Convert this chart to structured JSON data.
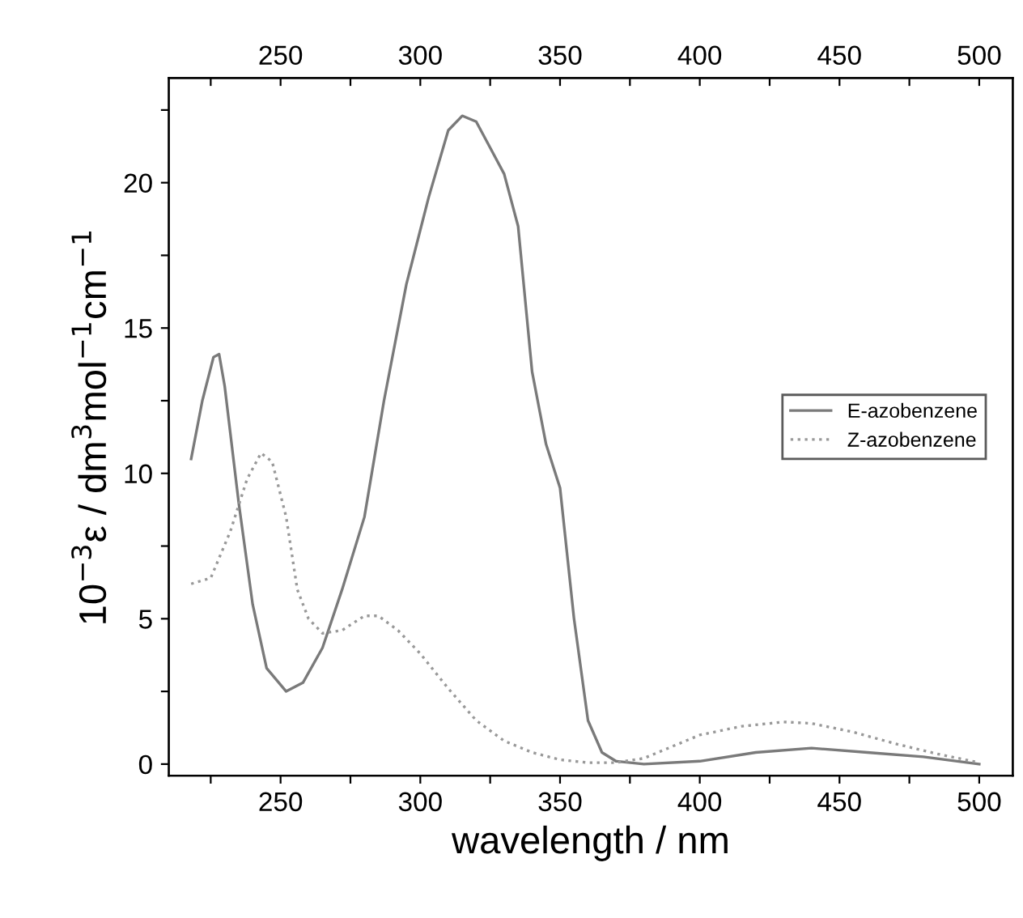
{
  "chart_data": {
    "type": "line",
    "xlabel": "wavelength / nm",
    "ylabel": "10$^{−3}$ε / dm$^{3}$mol$^{−1}$cm$^{−1}$",
    "xlim": [
      210,
      512
    ],
    "xticks": [
      {
        "value": 225,
        "label": null
      },
      250,
      {
        "value": 275,
        "label": null
      },
      300,
      {
        "value": 325,
        "label": null
      },
      350,
      {
        "value": 375,
        "label": null
      },
      400,
      {
        "value": 425,
        "label": null
      },
      450,
      {
        "value": 475,
        "label": null
      },
      500
    ],
    "x2lim": [
      210,
      512
    ],
    "x2ticks": [
      {
        "value": 225,
        "label": null
      },
      250,
      {
        "value": 275,
        "label": null
      },
      300,
      {
        "value": 325,
        "label": null
      },
      350,
      {
        "value": 375,
        "label": null
      },
      400,
      {
        "value": 425,
        "label": null
      },
      450,
      {
        "value": 475,
        "label": null
      },
      500
    ],
    "ylim": [
      -0.4,
      23.6
    ],
    "yticks": [
      0,
      {
        "value": 2.5,
        "label": null
      },
      5,
      {
        "value": 7.5,
        "label": null
      },
      10,
      {
        "value": 12.5,
        "label": null
      },
      15,
      {
        "value": 17.5,
        "label": null
      },
      20,
      {
        "value": 22.5,
        "label": null
      }
    ],
    "grid": false,
    "legend": "right",
    "series": [
      {
        "name": "E-azobenzene",
        "color": "#7a7a7a",
        "line_style": "solid",
        "x": [
          218,
          222,
          226,
          228,
          230,
          235,
          240,
          245,
          252,
          258,
          265,
          272,
          280,
          287,
          295,
          303,
          310,
          315,
          320,
          325,
          330,
          335,
          340,
          345,
          350,
          355,
          360,
          365,
          370,
          380,
          400,
          420,
          440,
          460,
          480,
          500
        ],
        "values": [
          10.5,
          12.5,
          14.0,
          14.1,
          13.0,
          9,
          5.5,
          3.3,
          2.5,
          2.8,
          4,
          6,
          8.5,
          12.5,
          16.5,
          19.5,
          21.8,
          22.3,
          22.1,
          21.2,
          20.3,
          18.5,
          13.5,
          11,
          9.5,
          5,
          1.5,
          0.4,
          0.1,
          0,
          0.1,
          0.4,
          0.55,
          0.4,
          0.25,
          0
        ]
      },
      {
        "name": "Z-azobenzene",
        "color": "#999999",
        "line_style": "dotted",
        "x": [
          218,
          225,
          232,
          238,
          243,
          247,
          252,
          256,
          260,
          265,
          272,
          280,
          285,
          292,
          300,
          310,
          320,
          330,
          340,
          350,
          360,
          370,
          380,
          390,
          400,
          415,
          430,
          440,
          455,
          470,
          485,
          500
        ],
        "values": [
          6.2,
          6.4,
          8,
          9.8,
          10.7,
          10.4,
          8.5,
          6,
          5,
          4.5,
          4.6,
          5.1,
          5.1,
          4.6,
          3.8,
          2.6,
          1.5,
          0.8,
          0.4,
          0.15,
          0.05,
          0.05,
          0.2,
          0.6,
          1.0,
          1.3,
          1.45,
          1.4,
          1.1,
          0.7,
          0.35,
          0.05
        ]
      }
    ]
  }
}
